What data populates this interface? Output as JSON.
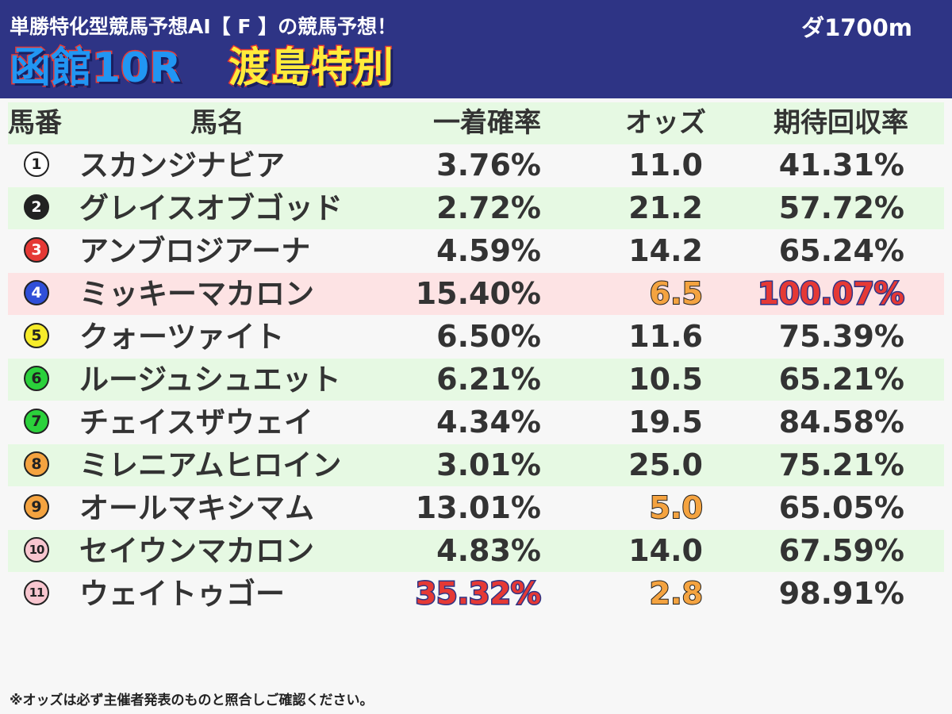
{
  "header": {
    "subtitle": "単勝特化型競馬予想AI【 F 】の競馬予想！",
    "distance": "ダ1700m",
    "venue": "函館10R",
    "race_name": "渡島特別"
  },
  "columns": [
    "馬番",
    "馬名",
    "一着確率",
    "オッズ",
    "期待回収率"
  ],
  "colors": {
    "header_bg": "#2e3485",
    "row_green": "#e6f9e3",
    "row_highlight": "#fde3e4",
    "accent_orange": "#f4a340",
    "accent_red": "#e53935"
  },
  "horses": [
    {
      "num": "1",
      "name": "スカンジナビア",
      "prob": "3.76%",
      "odds": "11.0",
      "ret": "41.31%",
      "badge_bg": "#ffffff",
      "badge_fg": "#222222"
    },
    {
      "num": "2",
      "name": "グレイスオブゴッド",
      "prob": "2.72%",
      "odds": "21.2",
      "ret": "57.72%",
      "badge_bg": "#222222",
      "badge_fg": "#ffffff"
    },
    {
      "num": "3",
      "name": "アンブロジアーナ",
      "prob": "4.59%",
      "odds": "14.2",
      "ret": "65.24%",
      "badge_bg": "#e53935",
      "badge_fg": "#ffffff"
    },
    {
      "num": "4",
      "name": "ミッキーマカロン",
      "prob": "15.40%",
      "odds": "6.5",
      "ret": "100.07%",
      "badge_bg": "#2f4fd8",
      "badge_fg": "#ffffff"
    },
    {
      "num": "5",
      "name": "クォーツァイト",
      "prob": "6.50%",
      "odds": "11.6",
      "ret": "75.39%",
      "badge_bg": "#f6ec2a",
      "badge_fg": "#222222"
    },
    {
      "num": "6",
      "name": "ルージュシュエット",
      "prob": "6.21%",
      "odds": "10.5",
      "ret": "65.21%",
      "badge_bg": "#2bd13b",
      "badge_fg": "#222222"
    },
    {
      "num": "7",
      "name": "チェイスザウェイ",
      "prob": "4.34%",
      "odds": "19.5",
      "ret": "84.58%",
      "badge_bg": "#2bd13b",
      "badge_fg": "#222222"
    },
    {
      "num": "8",
      "name": "ミレニアムヒロイン",
      "prob": "3.01%",
      "odds": "25.0",
      "ret": "75.21%",
      "badge_bg": "#f4a340",
      "badge_fg": "#222222"
    },
    {
      "num": "9",
      "name": "オールマキシマム",
      "prob": "13.01%",
      "odds": "5.0",
      "ret": "65.05%",
      "badge_bg": "#f4a340",
      "badge_fg": "#222222"
    },
    {
      "num": "10",
      "name": "セイウンマカロン",
      "prob": "4.83%",
      "odds": "14.0",
      "ret": "67.59%",
      "badge_bg": "#f8c6cf",
      "badge_fg": "#222222"
    },
    {
      "num": "11",
      "name": "ウェイトゥゴー",
      "prob": "35.32%",
      "odds": "2.8",
      "ret": "98.91%",
      "badge_bg": "#f8c6cf",
      "badge_fg": "#222222"
    }
  ],
  "footnote": "※オッズは必ず主催者発表のものと照合しご確認ください。"
}
